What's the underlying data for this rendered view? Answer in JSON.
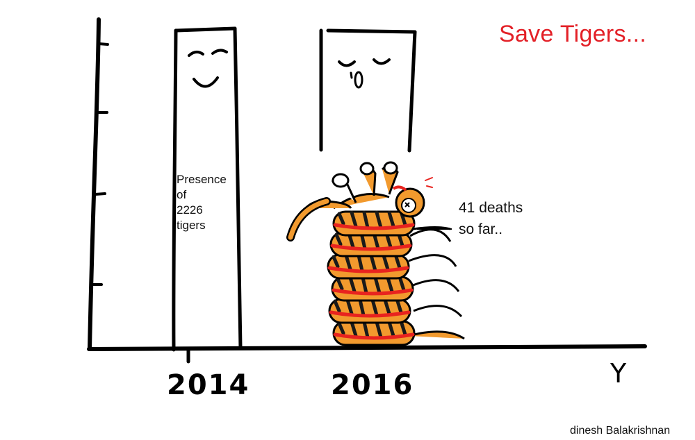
{
  "title": "Save Tigers...",
  "colors": {
    "title": "#e32027",
    "ink": "#000000",
    "tiger_orange": "#f29a2e",
    "stripe": "#1a1a1a",
    "blood": "#e8231f"
  },
  "bar_2014": {
    "label_lines": [
      "Presence",
      "of",
      "2226",
      "tigers"
    ],
    "face": "smiling"
  },
  "bar_2016": {
    "face": "crying"
  },
  "pile_note": [
    "41 deaths",
    "so far.."
  ],
  "x_axis": {
    "categories": [
      "2014",
      "2016"
    ],
    "letter": "Y"
  },
  "credit": "dinesh Balakrishnan"
}
